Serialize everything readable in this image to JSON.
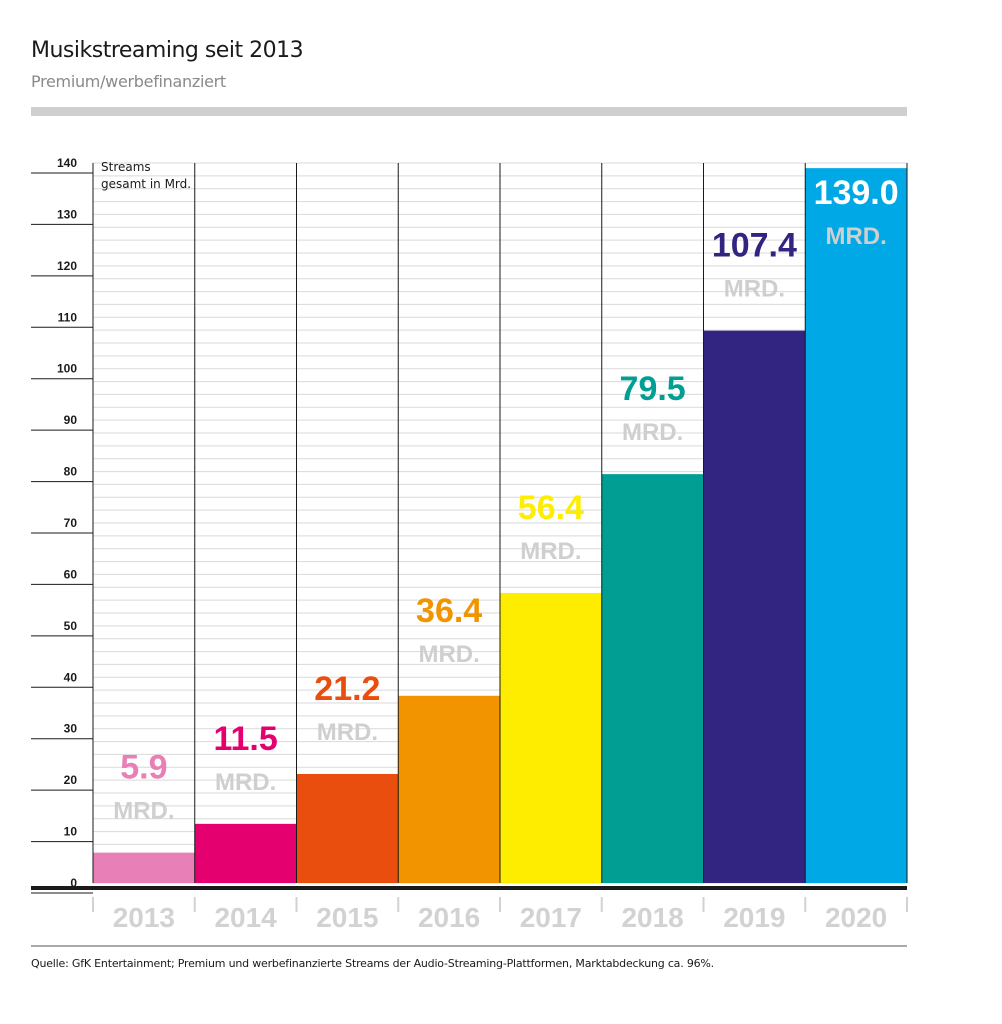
{
  "header": {
    "title": "Musikstreaming seit 2013",
    "subtitle": "Premium/werbefinanziert"
  },
  "source": "Quelle: GfK Entertainment; Premium und werbefinanzierte Streams der Audio-Streaming-Plattformen, Marktabdeckung ca. 96%.",
  "chart_data": {
    "type": "bar",
    "title": "Musikstreaming seit 2013",
    "subtitle": "Premium/werbefinanziert",
    "ylabel_lines": [
      "Streams",
      "gesamt in Mrd."
    ],
    "ylim": [
      0,
      140
    ],
    "yticks": [
      0,
      10,
      20,
      30,
      40,
      50,
      60,
      70,
      80,
      90,
      100,
      110,
      120,
      130,
      140
    ],
    "grid": true,
    "categories": [
      "2013",
      "2014",
      "2015",
      "2016",
      "2017",
      "2018",
      "2019",
      "2020"
    ],
    "values": [
      5.9,
      11.5,
      21.2,
      36.4,
      56.4,
      79.5,
      107.4,
      139.0
    ],
    "value_labels": [
      "5.9",
      "11.5",
      "21.2",
      "36.4",
      "56.4",
      "79.5",
      "107.4",
      "139.0"
    ],
    "unit_label": "MRD.",
    "colors": [
      "#e87fb6",
      "#e4006e",
      "#e94e0f",
      "#f29400",
      "#ffed00",
      "#009e93",
      "#312581",
      "#00a8e6"
    ],
    "label_colors": [
      "#e87fb6",
      "#e4006e",
      "#e94e0f",
      "#f29400",
      "#ffed00",
      "#009e93",
      "#312581",
      "#ffffff"
    ],
    "unit_colors": [
      "#cfcfcf",
      "#cfcfcf",
      "#cfcfcf",
      "#cfcfcf",
      "#cfcfcf",
      "#cfcfcf",
      "#cfcfcf",
      "#dfeff8"
    ]
  }
}
